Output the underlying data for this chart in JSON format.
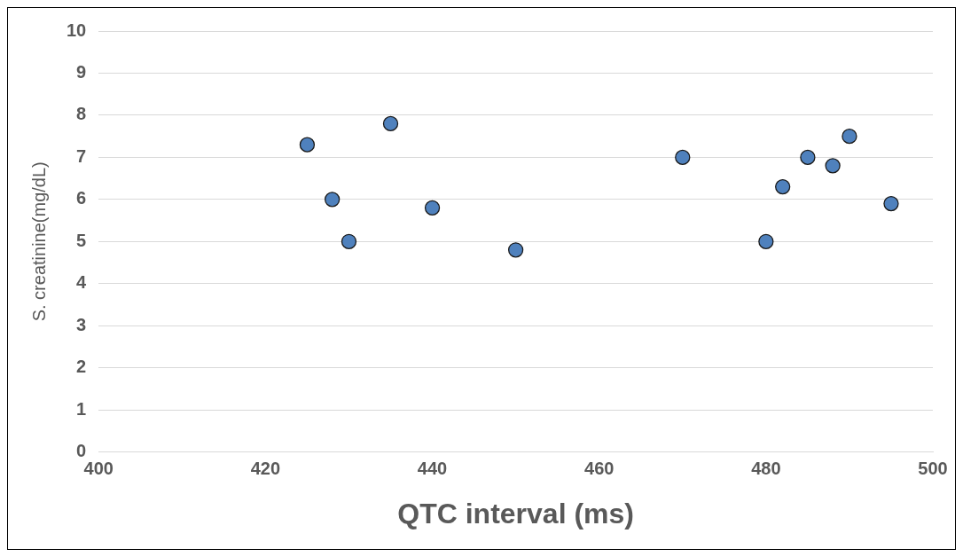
{
  "chart_data": {
    "type": "scatter",
    "xlabel": "QTC interval (ms)",
    "ylabel": "S. creatinine(mg/dL)",
    "x": [
      425,
      428,
      430,
      435,
      440,
      450,
      470,
      480,
      482,
      485,
      488,
      490,
      495
    ],
    "series": [
      {
        "color": "#4f81bd",
        "values": [
          7.3,
          6.0,
          5.0,
          7.8,
          5.8,
          4.8,
          7.0,
          5.0,
          6.3,
          7.0,
          6.8,
          7.5,
          5.9
        ]
      }
    ],
    "xlim": [
      400,
      500
    ],
    "xticks": [
      400,
      420,
      440,
      460,
      480,
      500
    ],
    "ylim": [
      0,
      10
    ],
    "yticks": [
      0,
      1,
      2,
      3,
      4,
      5,
      6,
      7,
      8,
      9,
      10
    ],
    "grid": "y",
    "legend": false,
    "marker": "circle"
  }
}
